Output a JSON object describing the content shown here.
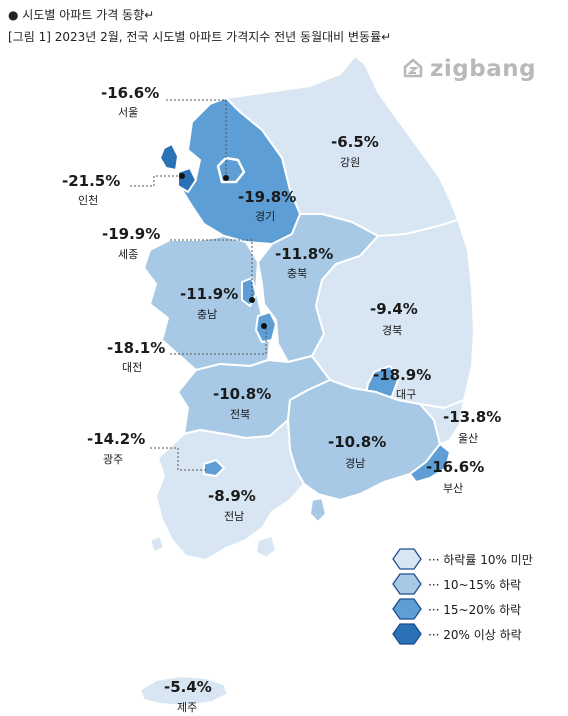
{
  "header": {
    "title": "● 시도별 아파트 가격 동향↵",
    "caption": "[그림 1] 2023년 2월, 전국 시도별 아파트 가격지수 전년 동월대비 변동률↵"
  },
  "logo": {
    "text": "zigbang"
  },
  "regions": {
    "seoul": {
      "name": "서울",
      "value": "-16.6%"
    },
    "incheon": {
      "name": "인천",
      "value": "-21.5%"
    },
    "gyeonggi": {
      "name": "경기",
      "value": "-19.8%"
    },
    "gangwon": {
      "name": "강원",
      "value": "-6.5%"
    },
    "sejong": {
      "name": "세종",
      "value": "-19.9%"
    },
    "chungbuk": {
      "name": "충북",
      "value": "-11.8%"
    },
    "chungnam": {
      "name": "충남",
      "value": "-11.9%"
    },
    "gyeongbuk": {
      "name": "경북",
      "value": "-9.4%"
    },
    "daejeon": {
      "name": "대전",
      "value": "-18.1%"
    },
    "daegu": {
      "name": "대구",
      "value": "-18.9%"
    },
    "jeonbuk": {
      "name": "전북",
      "value": "-10.8%"
    },
    "ulsan": {
      "name": "울산",
      "value": "-13.8%"
    },
    "gwangju": {
      "name": "광주",
      "value": "-14.2%"
    },
    "gyeongnam": {
      "name": "경남",
      "value": "-10.8%"
    },
    "busan": {
      "name": "부산",
      "value": "-16.6%"
    },
    "jeonnam": {
      "name": "전남",
      "value": "-8.9%"
    },
    "jeju": {
      "name": "제주",
      "value": "-5.4%"
    }
  },
  "legend": [
    {
      "label": "··· 하락률 10% 미만",
      "color": "#d8e6f3"
    },
    {
      "label": "··· 10~15% 하락",
      "color": "#a7c9e6"
    },
    {
      "label": "··· 15~20% 하락",
      "color": "#5c9ed5"
    },
    {
      "label": "··· 20% 이상 하락",
      "color": "#2a72b5"
    }
  ],
  "colors": {
    "lt10": "#d8e6f3",
    "10to15": "#a7c9e6",
    "15to20": "#5c9ed5",
    "gt20": "#2a72b5",
    "border": "#ffffff"
  }
}
